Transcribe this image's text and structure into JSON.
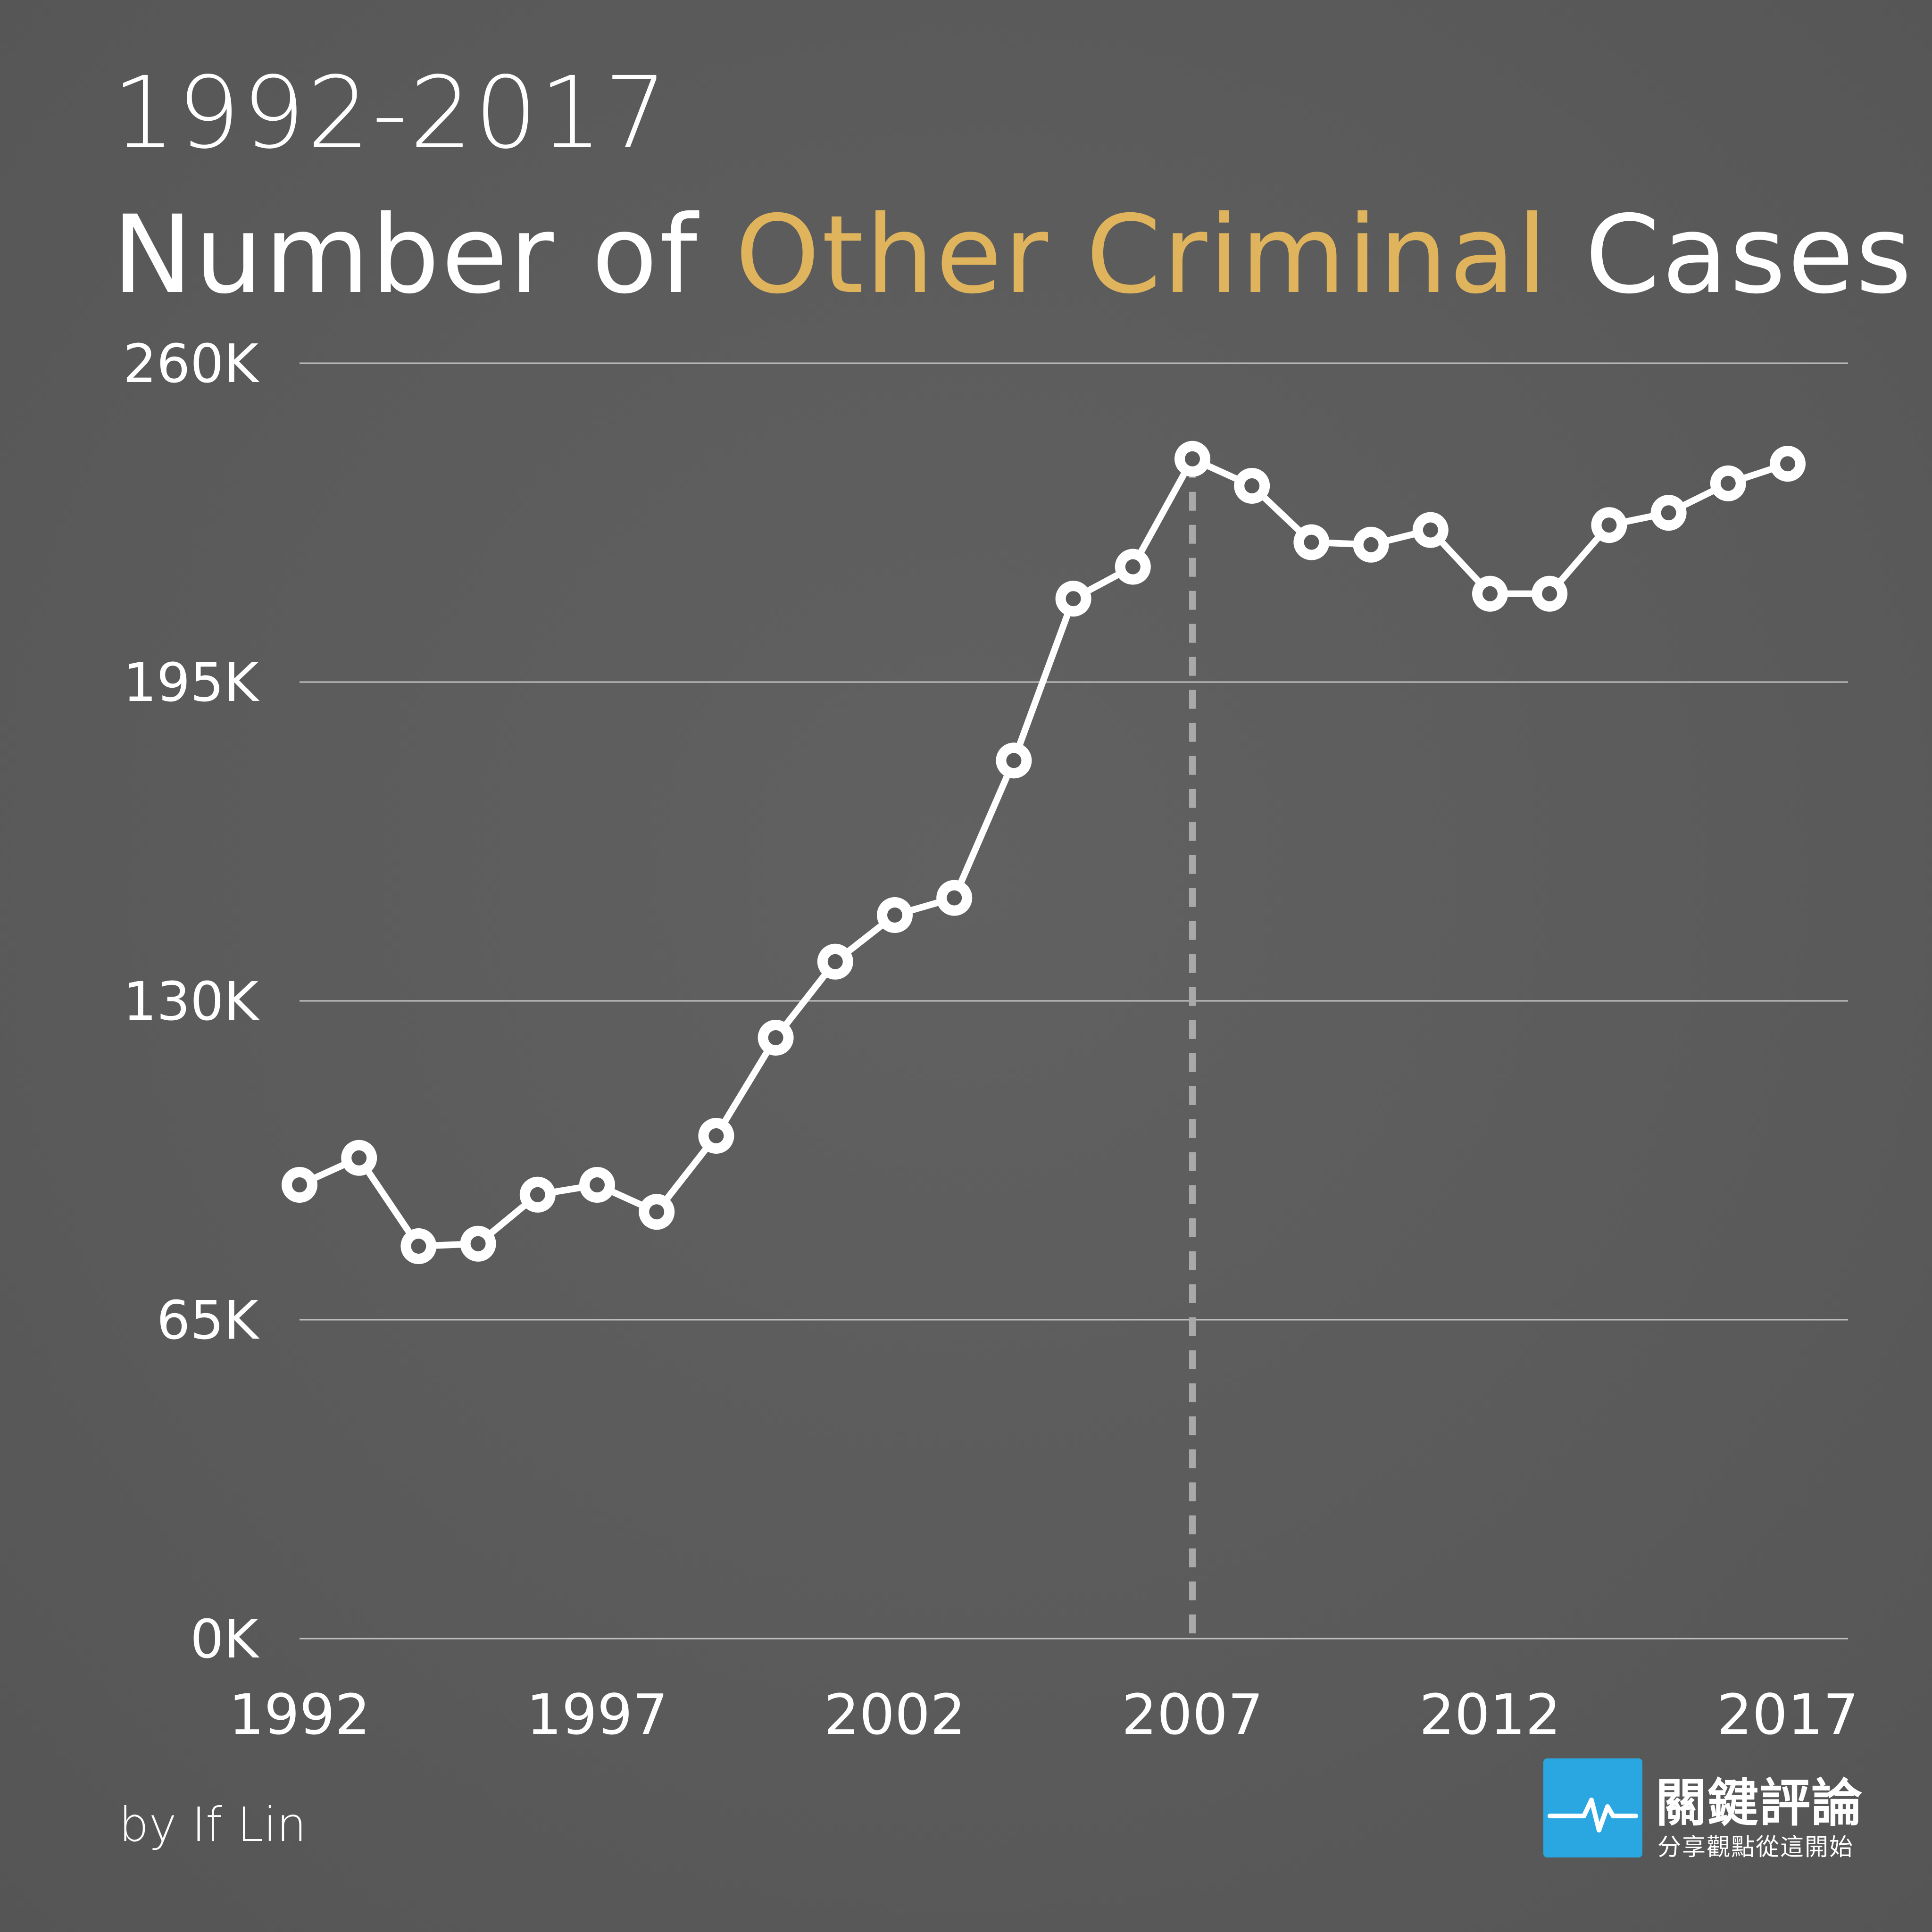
{
  "title": {
    "years": "1992-2017",
    "prefix": "Number of ",
    "highlight": "Other Criminal",
    "suffix": " Cases"
  },
  "credit": "by If Lin",
  "brand": {
    "name": "關鍵評論",
    "slogan": "分享觀點從這開始",
    "logo_icon": "heartbeat-line-icon",
    "logo_color": "#2aa6e0"
  },
  "colors": {
    "background": "#5a5a5a",
    "line": "#ffffff",
    "highlight": "#e0b45c",
    "grid": "#bfbfbf",
    "marker_line": "#a9a9a9"
  },
  "chart_data": {
    "type": "line",
    "x": [
      1992,
      1993,
      1994,
      1995,
      1996,
      1997,
      1998,
      1999,
      2000,
      2001,
      2002,
      2003,
      2004,
      2005,
      2006,
      2007,
      2008,
      2009,
      2010,
      2011,
      2012,
      2013,
      2014,
      2015,
      2016,
      2017
    ],
    "series": [
      {
        "values": [
          92500,
          98000,
          80000,
          80500,
          90500,
          92500,
          87000,
          102500,
          122500,
          138000,
          147500,
          151000,
          179000,
          212000,
          218500,
          240500,
          235000,
          223500,
          223000,
          226000,
          213000,
          213000,
          227000,
          229500,
          235500,
          239500
        ]
      }
    ],
    "xticks": [
      "1992",
      "1997",
      "2002",
      "2007",
      "2012",
      "2017"
    ],
    "yticks": [
      "0K",
      "65K",
      "130K",
      "195K",
      "260K"
    ],
    "ylim": [
      0,
      260000
    ],
    "xlim": [
      1992,
      2017
    ],
    "grid": "horizontal",
    "highlight_x": 2007,
    "xlabel": "",
    "ylabel": ""
  }
}
